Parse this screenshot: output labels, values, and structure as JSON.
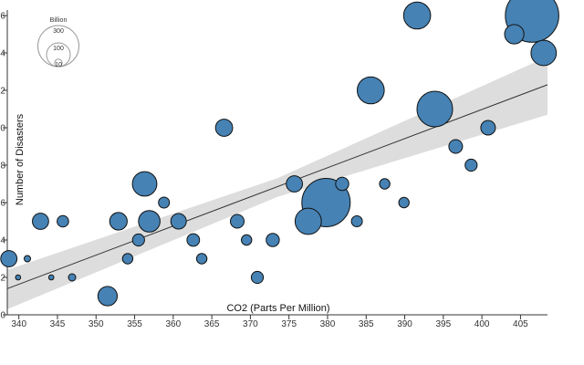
{
  "chart_data": {
    "type": "scatter",
    "xlabel": "CO2 (Parts Per Million)",
    "ylabel": "Number of Disasters",
    "xlim": [
      338.5,
      408.5
    ],
    "ylim": [
      0,
      16
    ],
    "xticks": [
      340,
      345,
      350,
      355,
      360,
      365,
      370,
      375,
      380,
      385,
      390,
      395,
      400,
      405
    ],
    "yticks": [
      0,
      2,
      4,
      6,
      8,
      10,
      12,
      14,
      16
    ],
    "size_legend": {
      "title": "Billion",
      "values": [
        300,
        100,
        10
      ],
      "labels": [
        "300",
        "100",
        "10"
      ]
    },
    "trend_line": {
      "x": [
        338.5,
        408.5
      ],
      "y": [
        1.4,
        12.3
      ]
    },
    "confidence_band": {
      "x": [
        338.5,
        373.5,
        408.5
      ],
      "upper": [
        2.4,
        7.3,
        13.8
      ],
      "lower": [
        0.3,
        6.3,
        10.7
      ]
    },
    "colors": {
      "bubble_fill": "#4682b4",
      "bubble_stroke": "#111111",
      "band": "#dddddd",
      "line": "#333333"
    },
    "points": [
      {
        "x": 338.7,
        "y": 3.0,
        "size": 20
      },
      {
        "x": 339.9,
        "y": 2.0,
        "size": 2
      },
      {
        "x": 341.1,
        "y": 3.0,
        "size": 3
      },
      {
        "x": 342.8,
        "y": 5.0,
        "size": 20
      },
      {
        "x": 344.2,
        "y": 2.0,
        "size": 2
      },
      {
        "x": 345.7,
        "y": 5.0,
        "size": 10
      },
      {
        "x": 346.9,
        "y": 2.0,
        "size": 4
      },
      {
        "x": 351.5,
        "y": 1.0,
        "size": 28
      },
      {
        "x": 352.9,
        "y": 5.0,
        "size": 23
      },
      {
        "x": 354.1,
        "y": 3.0,
        "size": 8
      },
      {
        "x": 355.5,
        "y": 4.0,
        "size": 11
      },
      {
        "x": 356.3,
        "y": 7.0,
        "size": 45
      },
      {
        "x": 356.9,
        "y": 5.0,
        "size": 35
      },
      {
        "x": 358.8,
        "y": 6.0,
        "size": 9
      },
      {
        "x": 360.7,
        "y": 5.0,
        "size": 18
      },
      {
        "x": 362.6,
        "y": 4.0,
        "size": 12
      },
      {
        "x": 363.7,
        "y": 3.0,
        "size": 8
      },
      {
        "x": 366.6,
        "y": 10.0,
        "size": 22
      },
      {
        "x": 368.3,
        "y": 5.0,
        "size": 14
      },
      {
        "x": 369.5,
        "y": 4.0,
        "size": 8
      },
      {
        "x": 370.9,
        "y": 2.0,
        "size": 11
      },
      {
        "x": 372.9,
        "y": 4.0,
        "size": 13
      },
      {
        "x": 375.7,
        "y": 7.0,
        "size": 20
      },
      {
        "x": 377.5,
        "y": 5.0,
        "size": 52
      },
      {
        "x": 379.8,
        "y": 6.0,
        "size": 175
      },
      {
        "x": 381.9,
        "y": 7.0,
        "size": 13
      },
      {
        "x": 383.8,
        "y": 5.0,
        "size": 9
      },
      {
        "x": 385.6,
        "y": 12.0,
        "size": 55
      },
      {
        "x": 387.4,
        "y": 7.0,
        "size": 8
      },
      {
        "x": 389.9,
        "y": 6.0,
        "size": 8
      },
      {
        "x": 391.6,
        "y": 16.0,
        "size": 55
      },
      {
        "x": 393.9,
        "y": 11.0,
        "size": 95
      },
      {
        "x": 396.6,
        "y": 9.0,
        "size": 14
      },
      {
        "x": 398.6,
        "y": 8.0,
        "size": 11
      },
      {
        "x": 400.8,
        "y": 10.0,
        "size": 16
      },
      {
        "x": 404.2,
        "y": 15.0,
        "size": 28
      },
      {
        "x": 406.5,
        "y": 16.0,
        "size": 215
      },
      {
        "x": 408.0,
        "y": 14.0,
        "size": 48
      }
    ]
  }
}
